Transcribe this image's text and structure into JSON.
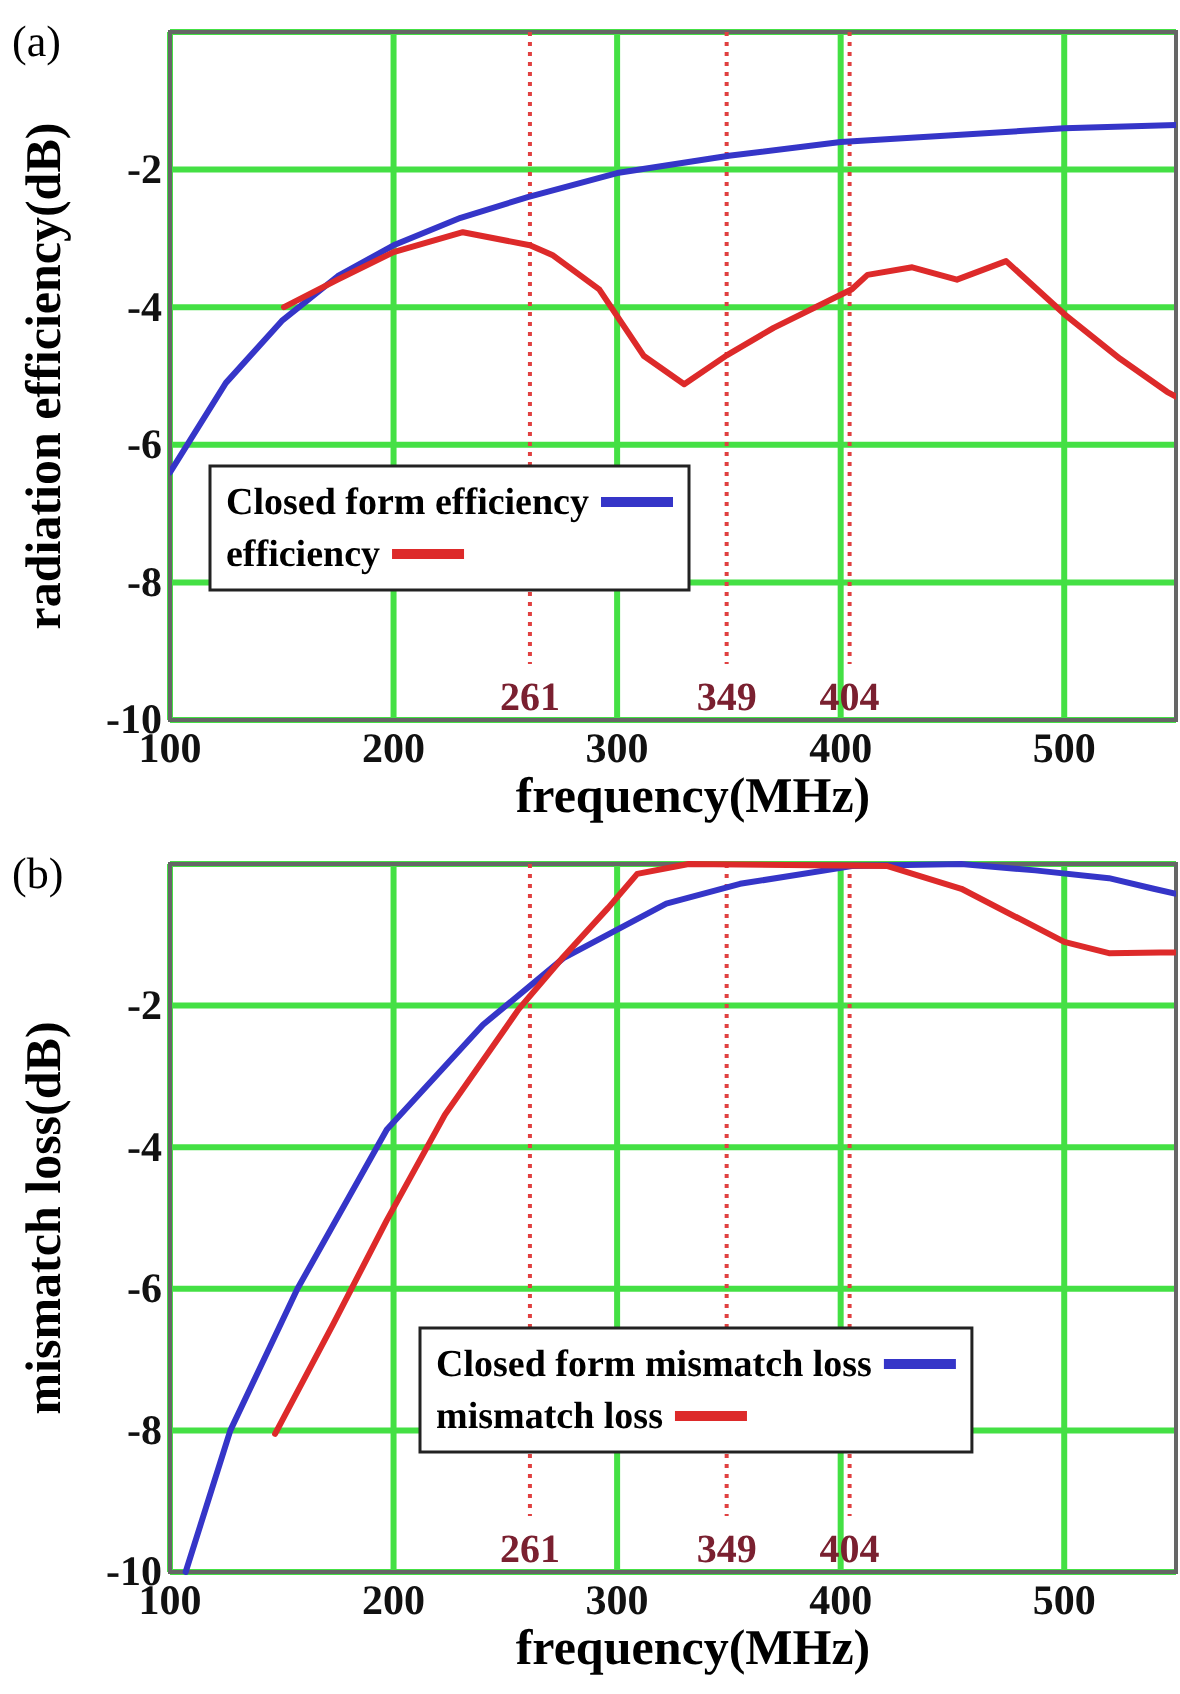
{
  "chart_data": [
    {
      "type": "line",
      "title": "(a)",
      "xlabel": "frequency(MHz)",
      "ylabel": "radiation efficiency(dB)",
      "xlim": [
        100,
        550
      ],
      "ylim": [
        -10,
        0
      ],
      "xticks": [
        100,
        200,
        300,
        400,
        500
      ],
      "yticks": [
        {
          "value": 0,
          "label": null
        },
        -2,
        -4,
        -6,
        -8,
        -10
      ],
      "grid": true,
      "legend": "left",
      "line_style": "solid",
      "series": [
        {
          "name": "Closed form efficiency",
          "color": "#3535c8",
          "x": [
            100,
            125,
            150,
            175,
            200,
            230,
            260,
            300,
            350,
            400,
            450,
            500,
            550
          ],
          "values": [
            -6.4,
            -5.1,
            -4.2,
            -3.55,
            -3.1,
            -2.7,
            -2.4,
            -2.05,
            -1.8,
            -1.6,
            -1.5,
            -1.4,
            -1.35
          ]
        },
        {
          "name": "efficiency",
          "color": "#dd2a2a",
          "x": [
            151,
            175,
            200,
            231,
            261,
            271,
            292,
            312,
            330,
            349,
            370,
            405,
            412,
            432,
            452,
            474,
            500,
            525,
            546,
            550
          ],
          "values": [
            -4.0,
            -3.6,
            -3.2,
            -2.91,
            -3.1,
            -3.24,
            -3.74,
            -4.71,
            -5.12,
            -4.7,
            -4.3,
            -3.74,
            -3.53,
            -3.42,
            -3.6,
            -3.33,
            -4.1,
            -4.75,
            -5.23,
            -5.3
          ]
        }
      ],
      "ref_lines": [
        {
          "axis": "x",
          "value": 261,
          "label": "261",
          "color": "#e04040",
          "line_style": "dotted"
        },
        {
          "axis": "x",
          "value": 349,
          "label": "349",
          "color": "#e04040",
          "line_style": "dotted"
        },
        {
          "axis": "x",
          "value": 404,
          "label": "404",
          "color": "#e04040",
          "line_style": "dotted"
        }
      ]
    },
    {
      "type": "line",
      "title": "(b)",
      "xlabel": "frequency(MHz)",
      "ylabel": "mismatch loss(dB)",
      "xlim": [
        100,
        550
      ],
      "ylim": [
        -10,
        0
      ],
      "xticks": [
        100,
        200,
        300,
        400,
        500
      ],
      "yticks": [
        {
          "value": 0,
          "label": null
        },
        -2,
        -4,
        -6,
        -8,
        -10
      ],
      "grid": true,
      "legend": "right",
      "line_style": "solid",
      "series": [
        {
          "name": "Closed form mismatch loss",
          "color": "#3535c8",
          "x": [
            107,
            127,
            157,
            197,
            240,
            276,
            322,
            355,
            405,
            454,
            487,
            520,
            540,
            550
          ],
          "values": [
            -10,
            -8,
            -6,
            -3.75,
            -2.27,
            -1.33,
            -0.56,
            -0.28,
            -0.03,
            0,
            -0.09,
            -0.2,
            -0.35,
            -0.42
          ]
        },
        {
          "name": "mismatch loss",
          "color": "#dd2a2a",
          "x": [
            147,
            173,
            197,
            223,
            256,
            276,
            296,
            309,
            332,
            421,
            454,
            500,
            520,
            543,
            550
          ],
          "values": [
            -8.05,
            -6.5,
            -5.03,
            -3.54,
            -2.05,
            -1.31,
            -0.62,
            -0.14,
            0,
            -0.03,
            -0.35,
            -1.1,
            -1.26,
            -1.25,
            -1.25
          ]
        }
      ],
      "ref_lines": [
        {
          "axis": "x",
          "value": 261,
          "label": "261",
          "color": "#e04040",
          "line_style": "dotted"
        },
        {
          "axis": "x",
          "value": 349,
          "label": "349",
          "color": "#e04040",
          "line_style": "dotted"
        },
        {
          "axis": "x",
          "value": 404,
          "label": "404",
          "color": "#e04040",
          "line_style": "dotted"
        }
      ]
    }
  ]
}
